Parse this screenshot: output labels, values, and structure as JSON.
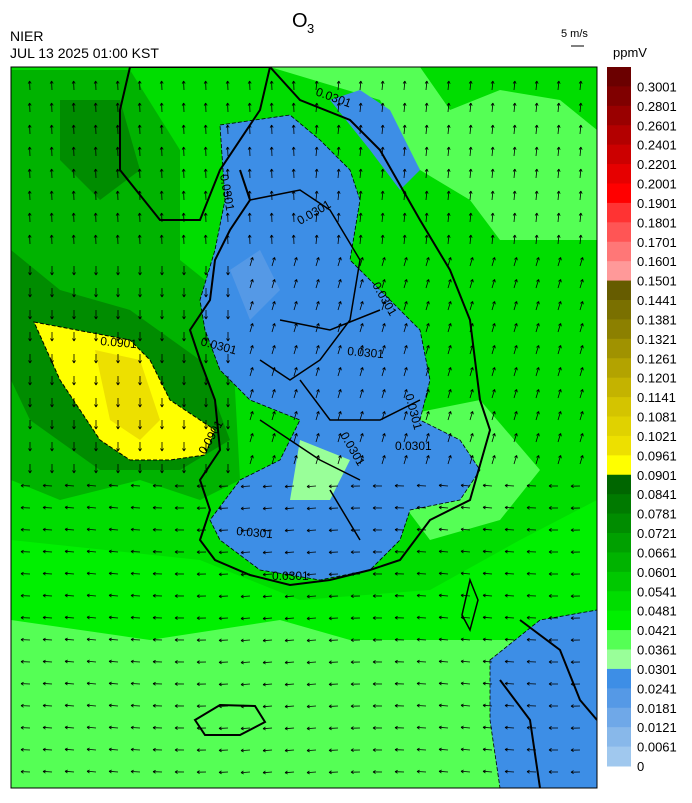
{
  "header": {
    "title": {
      "main": "O",
      "sub": "3"
    },
    "source": "NIER",
    "datetime": "JUL 13 2025 01:00 KST",
    "wind_scale": "5 m/s",
    "unit": "ppmV"
  },
  "map": {
    "contour_labels": [
      "0.0301",
      "0.0301",
      "0.0301",
      "0.0301",
      "0.0301",
      "0.0301",
      "0.0301",
      "0.0301",
      "0.0301",
      "0.0301",
      "0.0901",
      "0.0901",
      "0.0301"
    ]
  },
  "colorbar": {
    "labels": [
      "0.3001",
      "0.2801",
      "0.2601",
      "0.2401",
      "0.2201",
      "0.2001",
      "0.1901",
      "0.1801",
      "0.1701",
      "0.1601",
      "0.1501",
      "0.1441",
      "0.1381",
      "0.1321",
      "0.1261",
      "0.1201",
      "0.1141",
      "0.1081",
      "0.1021",
      "0.0961",
      "0.0901",
      "0.0841",
      "0.0781",
      "0.0721",
      "0.0661",
      "0.0601",
      "0.0541",
      "0.0481",
      "0.0421",
      "0.0361",
      "0.0301",
      "0.0241",
      "0.0181",
      "0.0121",
      "0.0061",
      "0"
    ],
    "colors": [
      "#6b0000",
      "#800000",
      "#990000",
      "#b30000",
      "#cc0000",
      "#e60000",
      "#ff0000",
      "#ff3333",
      "#ff5555",
      "#ff7777",
      "#ff9999",
      "#665c00",
      "#7a7000",
      "#8c8000",
      "#a09200",
      "#b3a300",
      "#c4b300",
      "#d4c400",
      "#e0d200",
      "#ede000",
      "#ffff00",
      "#006600",
      "#007a00",
      "#008c00",
      "#00a000",
      "#00b300",
      "#00c800",
      "#00dd00",
      "#00f000",
      "#55ff55",
      "#99ff99",
      "#3d8ee6",
      "#5599e6",
      "#6fa8e8",
      "#88b8ea",
      "#a0c8ee"
    ]
  }
}
